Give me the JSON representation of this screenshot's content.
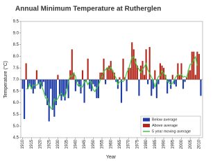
{
  "chart_data": {
    "type": "bar",
    "title": "Annual Minimum Temperature at Rutherglen",
    "x_label": "Year",
    "y_label": "Temperature (°C)",
    "baseline": 7,
    "x": [
      1910,
      1911,
      1912,
      1913,
      1914,
      1915,
      1916,
      1917,
      1918,
      1919,
      1920,
      1921,
      1922,
      1923,
      1924,
      1925,
      1926,
      1927,
      1928,
      1929,
      1930,
      1931,
      1932,
      1933,
      1934,
      1935,
      1936,
      1937,
      1938,
      1939,
      1940,
      1941,
      1942,
      1943,
      1944,
      1945,
      1946,
      1947,
      1948,
      1949,
      1950,
      1951,
      1952,
      1953,
      1954,
      1955,
      1956,
      1957,
      1958,
      1959,
      1960,
      1961,
      1962,
      1963,
      1964,
      1965,
      1966,
      1967,
      1968,
      1969,
      1970,
      1971,
      1972,
      1973,
      1974,
      1975,
      1976,
      1977,
      1978,
      1979,
      1980,
      1981,
      1982,
      1983,
      1984,
      1985,
      1986,
      1987,
      1988,
      1989,
      1990,
      1991,
      1992,
      1993,
      1994,
      1995,
      1996,
      1997,
      1998,
      1999,
      2000,
      2001,
      2002,
      2003,
      2004,
      2005,
      2006,
      2007,
      2008,
      2009,
      2010,
      2011
    ],
    "series": [
      {
        "name": "Below average",
        "color": "#1f3ca8",
        "type": "bar",
        "values": [
          6.6,
          5.3,
          null,
          6.6,
          6.8,
          6.6,
          6.4,
          6.6,
          null,
          6.8,
          6.6,
          6.7,
          6.9,
          6.3,
          5.9,
          5.2,
          6.6,
          5.7,
          5.4,
          5.9,
          null,
          6.3,
          6.1,
          6.3,
          6.1,
          6.6,
          6.2,
          null,
          null,
          null,
          6.5,
          6.9,
          6.7,
          6.4,
          null,
          6.0,
          6.9,
          null,
          6.6,
          6.5,
          6.8,
          6.7,
          6.2,
          6.2,
          null,
          null,
          null,
          6.8,
          null,
          null,
          null,
          null,
          null,
          6.9,
          6.6,
          null,
          6.0,
          null,
          null,
          6.5,
          null,
          null,
          null,
          null,
          null,
          null,
          6.3,
          null,
          null,
          null,
          null,
          6.8,
          null,
          6.3,
          6.6,
          null,
          6.2,
          6.8,
          null,
          null,
          null,
          null,
          6.4,
          6.9,
          6.6,
          null,
          6.8,
          6.7,
          null,
          null,
          null,
          6.6,
          6.9,
          null,
          null,
          null,
          null,
          null,
          null,
          null,
          null,
          6.3
        ]
      },
      {
        "name": "Above average",
        "color": "#b3281a",
        "type": "bar",
        "values": [
          null,
          null,
          7.7,
          null,
          null,
          null,
          null,
          null,
          7.4,
          null,
          null,
          null,
          null,
          null,
          null,
          null,
          null,
          null,
          null,
          null,
          7.2,
          null,
          null,
          null,
          null,
          null,
          null,
          7.4,
          8.3,
          7.3,
          null,
          null,
          null,
          null,
          7.4,
          null,
          null,
          7.9,
          null,
          null,
          null,
          null,
          null,
          null,
          7.3,
          7.3,
          7.9,
          null,
          7.5,
          7.6,
          7.8,
          7.4,
          7.3,
          null,
          null,
          7.1,
          null,
          7.9,
          7.1,
          null,
          7.5,
          7.5,
          8.6,
          8.3,
          7.9,
          7.6,
          null,
          7.6,
          7.8,
          7.2,
          8.3,
          null,
          8.4,
          null,
          null,
          7.4,
          null,
          null,
          7.7,
          7.6,
          7.5,
          7.2,
          null,
          null,
          null,
          7.2,
          null,
          null,
          7.7,
          7.2,
          7.7,
          null,
          null,
          7.1,
          7.4,
          7.4,
          8.2,
          8.2,
          7.2,
          8.2,
          8.1,
          null
        ]
      },
      {
        "name": "5 year moving average",
        "color": "#3cc83c",
        "type": "line",
        "values": [
          null,
          null,
          6.6,
          6.6,
          6.82,
          6.6,
          6.76,
          6.76,
          6.76,
          6.82,
          6.88,
          6.66,
          6.48,
          6.2,
          6.18,
          5.94,
          5.76,
          5.76,
          6.16,
          6.1,
          6.18,
          6.36,
          6.4,
          6.28,
          6.26,
          6.52,
          6.92,
          7.16,
          7.14,
          7.28,
          7.14,
          6.76,
          6.78,
          6.68,
          6.68,
          6.92,
          6.96,
          6.78,
          6.94,
          6.9,
          6.56,
          6.48,
          6.64,
          6.74,
          6.98,
          7.1,
          7.36,
          7.42,
          7.52,
          7.42,
          7.52,
          7.4,
          7.2,
          7.06,
          6.78,
          6.9,
          6.94,
          6.92,
          7.0,
          7.3,
          7.44,
          7.68,
          7.96,
          7.98,
          7.74,
          7.54,
          7.44,
          7.3,
          7.44,
          7.54,
          7.7,
          7.4,
          7.28,
          7.1,
          6.98,
          6.66,
          6.94,
          7.14,
          7.16,
          7.36,
          7.28,
          7.12,
          6.92,
          6.86,
          6.78,
          6.84,
          7.0,
          7.12,
          7.22,
          7.18,
          7.22,
          7.1,
          7.14,
          7.08,
          7.4,
          7.66,
          7.68,
          7.84,
          7.98,
          7.6,
          null,
          null
        ]
      }
    ],
    "xlim": [
      1909,
      2012
    ],
    "xticks": [
      1910,
      1915,
      1920,
      1925,
      1930,
      1935,
      1940,
      1945,
      1950,
      1955,
      1960,
      1965,
      1970,
      1975,
      1980,
      1985,
      1990,
      1995,
      2000,
      2005,
      2010
    ],
    "ylim": [
      4.5,
      9.5
    ],
    "yticks": [
      4.5,
      {
        "value": 5,
        "label": "5.0"
      },
      5.5,
      {
        "value": 6,
        "label": "6.0"
      },
      6.5,
      {
        "value": 7,
        "label": "7.0"
      },
      7.5,
      {
        "value": 8,
        "label": "8.0"
      },
      8.5,
      {
        "value": 9,
        "label": "9.0"
      },
      9.5
    ],
    "grid": false,
    "legend": "bottom-right"
  }
}
